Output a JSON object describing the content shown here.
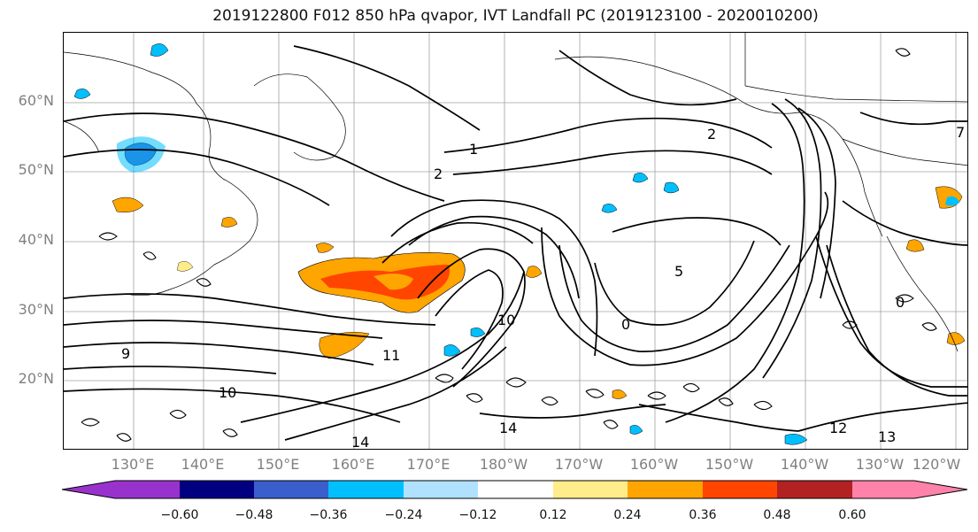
{
  "title": "2019122800 F012 850 hPa qvapor, IVT Landfall PC (2019123100 - 2020010200)",
  "lat_labels": [
    "60°N",
    "50°N",
    "40°N",
    "30°N",
    "20°N"
  ],
  "lon_labels": [
    "130°E",
    "140°E",
    "150°E",
    "160°E",
    "170°E",
    "180°W",
    "170°W",
    "160°W",
    "150°W",
    "140°W",
    "130°W",
    "120°W"
  ],
  "colorbar": {
    "ticks": [
      "−0.60",
      "−0.48",
      "−0.36",
      "−0.24",
      "−0.12",
      "0.12",
      "0.24",
      "0.36",
      "0.48",
      "0.60"
    ],
    "colors": [
      "#9932cc",
      "#000080",
      "#3a5fcd",
      "#00bfff",
      "#b0e2ff",
      "#ffffff",
      "#ffec8b",
      "#ffa500",
      "#ff4500",
      "#b22222",
      "#ff82ab"
    ]
  },
  "contour_labels": [
    "1",
    "2",
    "0",
    "5",
    "9",
    "10",
    "11",
    "12",
    "13",
    "14",
    "7"
  ],
  "colors": {
    "line": "#000000",
    "grid": "#a0a0a0",
    "axis_label": "#808080"
  }
}
